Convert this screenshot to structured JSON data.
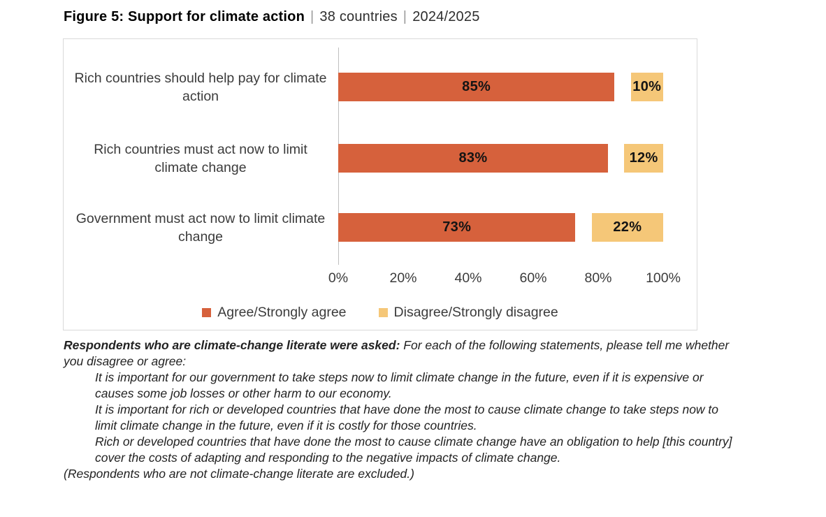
{
  "title": {
    "figure_label": "Figure 5: Support for climate action",
    "separator": "|",
    "countries": "38 countries",
    "period": "2024/2025"
  },
  "colors": {
    "agree_orange": "#d6613c",
    "disagree_yellow": "#f5c778",
    "panel_border": "#d9d9d9",
    "axis_line": "#bfbfbf",
    "bar_value_text": "#141414",
    "label_text": "#3b3b3b"
  },
  "chart_data": {
    "type": "bar",
    "orientation": "horizontal",
    "stacked_to_100": true,
    "categories": [
      "Rich countries should help pay for climate action",
      "Rich countries must act now to limit climate change",
      "Government must act now to limit climate change"
    ],
    "series": [
      {
        "name": "Agree/Strongly agree",
        "color": "#d6613c",
        "align": "left",
        "values": [
          85,
          83,
          73
        ]
      },
      {
        "name": "Disagree/Strongly disagree",
        "color": "#f5c778",
        "align": "right",
        "values": [
          10,
          12,
          22
        ]
      }
    ],
    "value_labels": [
      [
        "85%",
        "10%"
      ],
      [
        "83%",
        "12%"
      ],
      [
        "73%",
        "22%"
      ]
    ],
    "xlabel_ticks": [
      "0%",
      "20%",
      "40%",
      "60%",
      "80%",
      "100%"
    ],
    "xlim": [
      0,
      100
    ],
    "grid": false,
    "legend_position": "bottom-center"
  },
  "footnote": {
    "lead_bold": "Respondents who are climate-change literate were asked:",
    "lead_rest": " For each of the following statements, please tell me whether you disagree or agree:",
    "statements": [
      "It is important for our government to take steps now to limit climate change in the future, even if it is expensive or causes some job losses or other harm to our economy.",
      "It is important for rich or developed countries that have done the most to cause climate change to take steps now to limit climate change in the future, even if it is costly for those countries.",
      "Rich or developed countries that have done the most to cause climate change have an obligation to help [this country] cover the costs of adapting and responding to the negative impacts of climate change."
    ],
    "closing": "(Respondents who are not climate-change literate are excluded.)"
  }
}
